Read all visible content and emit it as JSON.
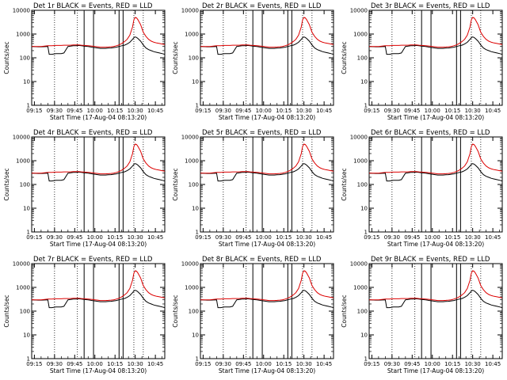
{
  "colors": {
    "events": "#000000",
    "lld": "#dd0000",
    "axes": "#000000"
  },
  "xlabel": "Start Time (17-Aug-04 08:13:20)",
  "ylabel": "Counts/sec",
  "x_ticks": [
    "09:15",
    "09:30",
    "09:45",
    "10:00",
    "10:15",
    "10:30",
    "10:45"
  ],
  "y_ticks": [
    "1",
    "10",
    "100",
    "1000",
    "10000"
  ],
  "chart_data": [
    {
      "title": "Det 1r BLACK = Events, RED = LLD"
    },
    {
      "title": "Det 2r BLACK = Events, RED = LLD"
    },
    {
      "title": "Det 3r BLACK = Events, RED = LLD"
    },
    {
      "title": "Det 4r BLACK = Events, RED = LLD"
    },
    {
      "title": "Det 5r BLACK = Events, RED = LLD"
    },
    {
      "title": "Det 6r BLACK = Events, RED = LLD"
    },
    {
      "title": "Det 7r BLACK = Events, RED = LLD"
    },
    {
      "title": "Det 8r BLACK = Events, RED = LLD"
    },
    {
      "title": "Det 9r BLACK = Events, RED = LLD"
    }
  ],
  "shared_series": {
    "type": "line",
    "y_scale": "log",
    "ylim": [
      1,
      10000
    ],
    "xlim": [
      "09:13",
      "10:52"
    ],
    "x_minutes_from_0900": [
      13,
      18,
      20,
      25,
      26,
      28,
      31,
      33,
      35,
      37,
      40,
      42,
      44,
      46,
      48,
      50,
      52,
      55,
      58,
      60,
      62,
      64,
      66,
      68,
      70,
      72,
      74,
      76,
      78,
      80,
      82,
      84,
      86,
      88,
      89,
      90,
      91,
      92,
      94,
      96,
      98,
      100,
      102,
      104,
      106,
      108,
      110,
      112
    ],
    "x_time_labels": [
      "09:13",
      "09:18",
      "09:20",
      "09:25",
      "09:26",
      "09:28",
      "09:31",
      "09:33",
      "09:35",
      "09:37",
      "09:40",
      "09:42",
      "09:44",
      "09:46",
      "09:48",
      "09:50",
      "09:52",
      "09:55",
      "09:58",
      "10:00",
      "10:02",
      "10:04",
      "10:06",
      "10:08",
      "10:10",
      "10:12",
      "10:14",
      "10:16",
      "10:18",
      "10:20",
      "10:22",
      "10:24",
      "10:26",
      "10:28",
      "10:29",
      "10:30",
      "10:31",
      "10:32",
      "10:34",
      "10:36",
      "10:38",
      "10:40",
      "10:42",
      "10:44",
      "10:46",
      "10:48",
      "10:50",
      "10:52"
    ],
    "series": [
      {
        "name": "Events",
        "values": [
          300,
          290,
          290,
          300,
          140,
          140,
          150,
          150,
          150,
          160,
          300,
          310,
          320,
          320,
          330,
          320,
          310,
          300,
          280,
          270,
          260,
          250,
          250,
          250,
          255,
          260,
          270,
          280,
          300,
          320,
          340,
          380,
          450,
          600,
          700,
          750,
          720,
          650,
          500,
          350,
          260,
          220,
          200,
          180,
          170,
          160,
          150,
          140
        ]
      },
      {
        "name": "LLD",
        "values": [
          300,
          300,
          300,
          320,
          320,
          320,
          330,
          330,
          330,
          340,
          340,
          340,
          350,
          350,
          350,
          340,
          330,
          320,
          310,
          300,
          290,
          280,
          280,
          280,
          285,
          290,
          300,
          320,
          350,
          400,
          480,
          600,
          900,
          2000,
          4000,
          5000,
          4800,
          4000,
          2500,
          1200,
          800,
          600,
          500,
          450,
          420,
          400,
          380,
          360
        ]
      }
    ],
    "vertical_markers_solid": [
      "09:52",
      "09:59",
      "10:18",
      "10:21"
    ],
    "vertical_markers_dotted": [
      "09:30",
      "09:47",
      "10:29",
      "10:36"
    ]
  }
}
